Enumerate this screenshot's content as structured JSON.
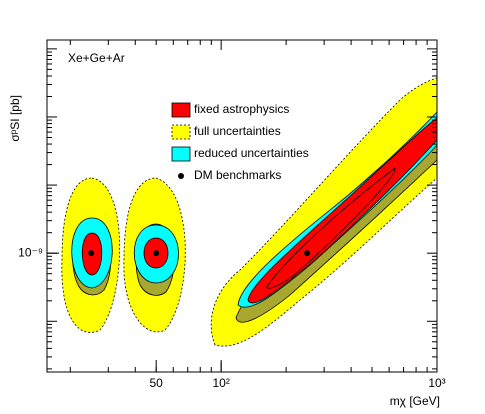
{
  "chart_data": {
    "type": "scatter",
    "title": "Xe+Ge+Ar",
    "x_label": "mχ [GeV]",
    "y_label": "σᵖSI [pb]",
    "log_x": true,
    "log_y": true,
    "xlim": [
      15.6,
      1000
    ],
    "ylim": [
      1.8e-11,
      1.35e-06
    ],
    "xticks": [
      50,
      {
        "value": 100,
        "label": "10²"
      },
      {
        "value": 1000,
        "label": "10³"
      }
    ],
    "yticks": [
      {
        "value": 1e-09,
        "label": "10⁻⁹"
      }
    ],
    "series": [
      {
        "name": "fixed astrophysics",
        "color": "#ff0000"
      },
      {
        "name": "full uncertainties",
        "color": "#ffff00"
      },
      {
        "name": "reduced uncertainties",
        "color": "#00ffff"
      },
      {
        "name": "DM benchmarks",
        "color": "#000000",
        "x": [
          25,
          50,
          250
        ],
        "values": [
          1e-09,
          1e-09,
          1e-09
        ]
      }
    ]
  }
}
